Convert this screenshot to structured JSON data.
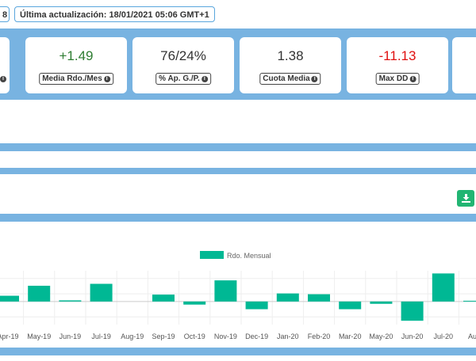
{
  "header": {
    "left_pill": "8",
    "last_update": "Última actualización: 18/01/2021 05:06 GMT+1"
  },
  "stats": [
    {
      "value": "",
      "label": ""
    },
    {
      "value": "+1.49",
      "label": "Media Rdo./Mes",
      "color": "#2e7d32"
    },
    {
      "value": "76/24%",
      "label": "% Ap. G./P.",
      "color": "#333333"
    },
    {
      "value": "1.38",
      "label": "Cuota Media",
      "color": "#333333"
    },
    {
      "value": "-11.13",
      "label": "Max DD",
      "color": "#e01010"
    },
    {
      "value": "",
      "label": ""
    }
  ],
  "download_icon": "download-icon",
  "colors": {
    "band": "#78b3e1",
    "bar": "#00b894",
    "positive": "#2e7d32",
    "negative": "#e01010",
    "download": "#22b573"
  },
  "chart_data": {
    "type": "bar",
    "legend": {
      "label": "Rdo. Mensual",
      "position": "top-center"
    },
    "categories": [
      "Apr-19",
      "May-19",
      "Jun-19",
      "Jul-19",
      "Aug-19",
      "Sep-19",
      "Oct-19",
      "Nov-19",
      "Dec-19",
      "Jan-20",
      "Feb-20",
      "Mar-20",
      "May-20",
      "Jun-20",
      "Jul-20",
      "Aug"
    ],
    "series": [
      {
        "name": "Rdo. Mensual",
        "values": [
          1.5,
          4.1,
          0.3,
          4.6,
          0,
          1.8,
          -0.8,
          5.5,
          -2.0,
          2.1,
          1.9,
          -2.0,
          -0.6,
          -5.0,
          7.3,
          0.2
        ]
      }
    ],
    "ylim": [
      -6,
      8
    ],
    "grid": true
  }
}
